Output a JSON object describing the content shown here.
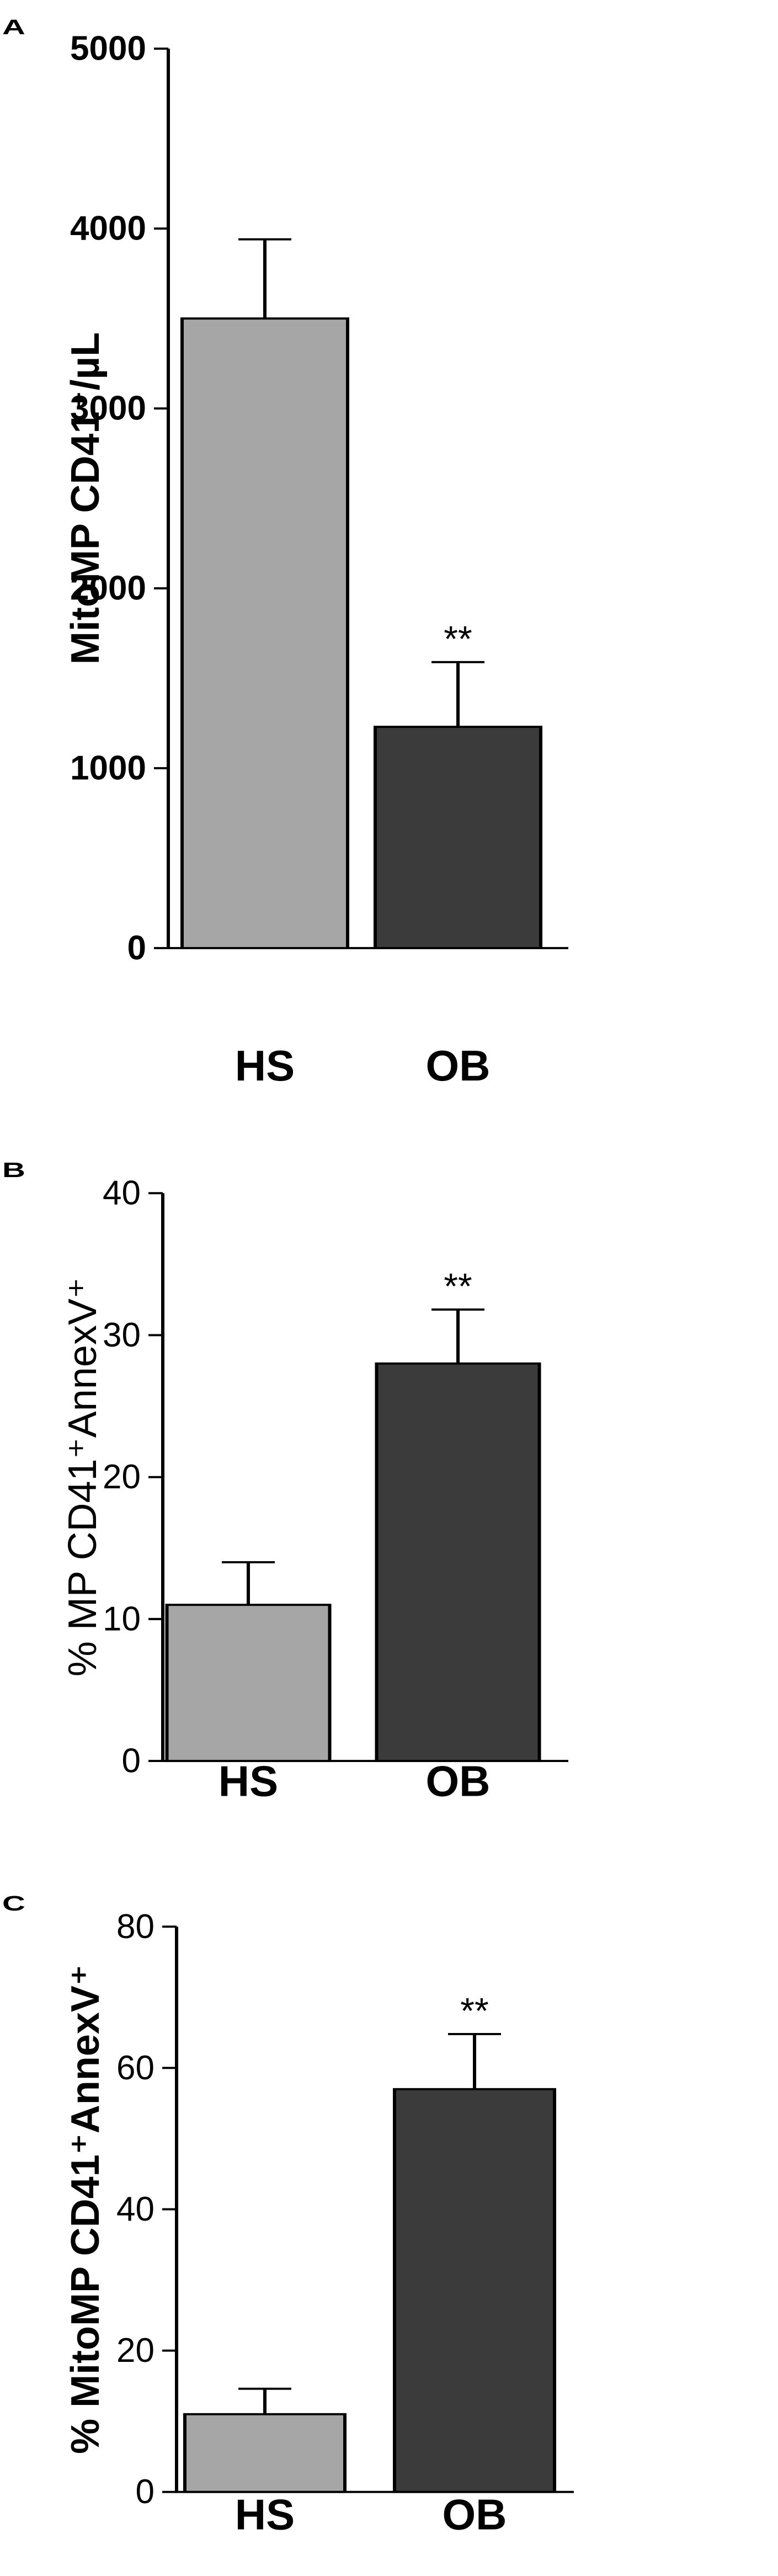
{
  "colors": {
    "HS": "#a6a6a6",
    "OB": "#3b3b3b",
    "axis": "#000000"
  },
  "chart_data": [
    {
      "panel": "A",
      "type": "bar",
      "categories": [
        "HS",
        "OB"
      ],
      "values": [
        3500,
        1230
      ],
      "errors": [
        440,
        360
      ],
      "significance": [
        "",
        "**"
      ],
      "ylabel": "MitoMP CD41⁺/µL",
      "ylim": [
        0,
        5000
      ],
      "yticks": [
        0,
        1000,
        2000,
        3000,
        4000,
        5000
      ],
      "grid": false
    },
    {
      "panel": "B",
      "type": "bar",
      "categories": [
        "HS",
        "OB"
      ],
      "values": [
        11,
        28
      ],
      "errors": [
        3,
        3.8
      ],
      "significance": [
        "",
        "**"
      ],
      "ylabel": "% MP CD41⁺AnnexV⁺",
      "ylim": [
        0,
        40
      ],
      "yticks": [
        0,
        10,
        20,
        30,
        40
      ],
      "grid": false
    },
    {
      "panel": "C",
      "type": "bar",
      "categories": [
        "HS",
        "OB"
      ],
      "values": [
        11,
        57
      ],
      "errors": [
        3.6,
        7.8
      ],
      "significance": [
        "",
        "**"
      ],
      "ylabel": "% MitoMP CD41⁺AnnexV⁺",
      "ylim": [
        0,
        80
      ],
      "yticks": [
        0,
        20,
        40,
        60,
        80
      ],
      "grid": false
    }
  ]
}
